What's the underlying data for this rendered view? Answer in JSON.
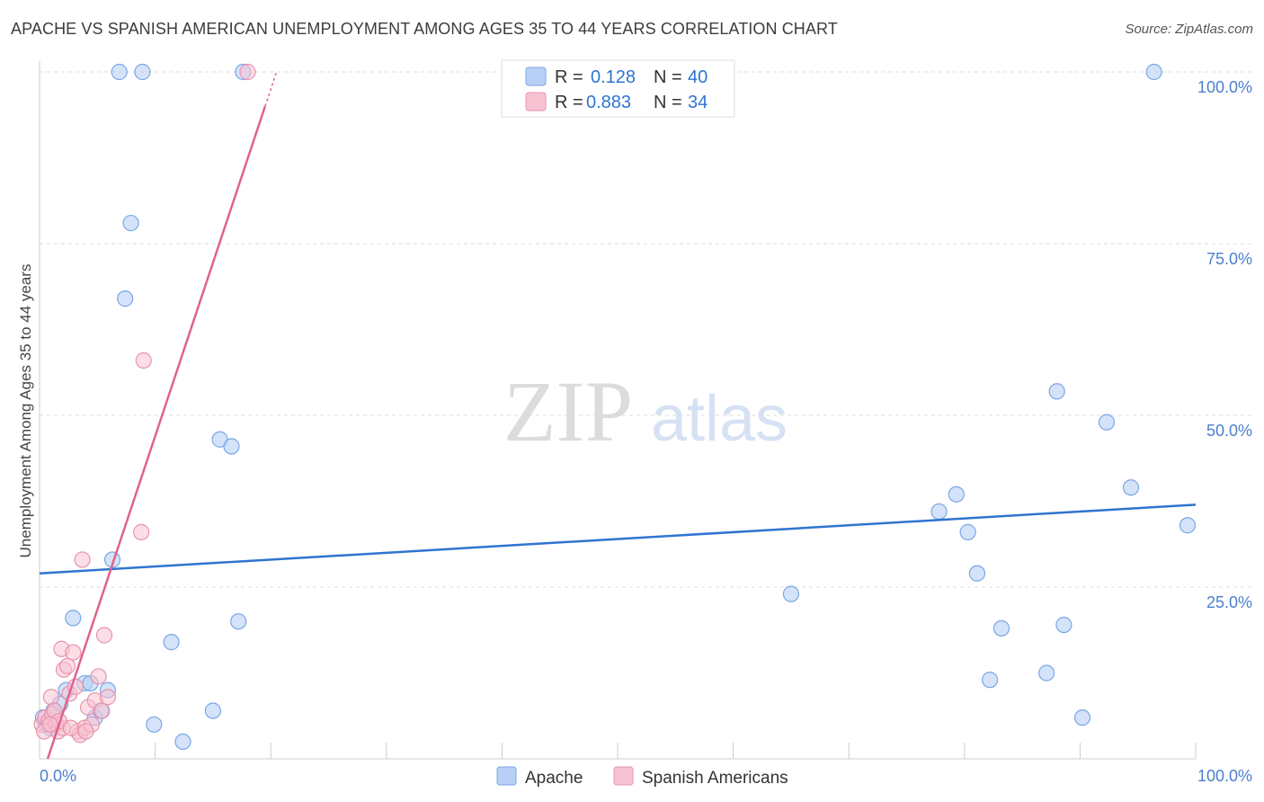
{
  "header": {
    "title": "APACHE VS SPANISH AMERICAN UNEMPLOYMENT AMONG AGES 35 TO 44 YEARS CORRELATION CHART",
    "source": "Source: ZipAtlas.com"
  },
  "watermark": {
    "zip": "ZIP",
    "atlas": "atlas"
  },
  "colors": {
    "apache_fill": "#b8d0f5",
    "apache_stroke": "#7aa6e6",
    "apache_line": "#2f74d0",
    "spanish_fill": "#f7c3d2",
    "spanish_stroke": "#e893ad",
    "spanish_line": "#e0628f",
    "axis_label": "#4a7fd0",
    "grid": "#dddddd"
  },
  "legend_top": {
    "rows": [
      {
        "r_label": "R =",
        "r_value": "0.128",
        "n_label": "N =",
        "n_value": "40"
      },
      {
        "r_label": "R =",
        "r_value": "0.883",
        "n_label": "N =",
        "n_value": "34"
      }
    ]
  },
  "legend_bottom": [
    "Apache",
    "Spanish Americans"
  ],
  "chart_data": {
    "type": "scatter",
    "title": "APACHE VS SPANISH AMERICAN UNEMPLOYMENT AMONG AGES 35 TO 44 YEARS CORRELATION CHART",
    "xlabel": "",
    "ylabel": "Unemployment Among Ages 35 to 44 years",
    "xlim": [
      0,
      100
    ],
    "ylim": [
      0,
      100
    ],
    "x_tick_labels": [
      "0.0%",
      "100.0%"
    ],
    "y_tick_labels": [
      {
        "value": 25,
        "label": "25.0%"
      },
      {
        "value": 50,
        "label": "50.0%"
      },
      {
        "value": 75,
        "label": "75.0%"
      },
      {
        "value": 100,
        "label": "100.0%"
      }
    ],
    "grid": true,
    "series": [
      {
        "name": "Apache",
        "r": 0.128,
        "n": 40,
        "trend": {
          "x0": 0,
          "y0": 27.0,
          "x1": 100,
          "y1": 37.0
        },
        "points": [
          [
            0.3,
            6.0
          ],
          [
            0.6,
            5.0
          ],
          [
            1.2,
            7.0
          ],
          [
            1.8,
            8.0
          ],
          [
            2.3,
            10.0
          ],
          [
            2.9,
            20.5
          ],
          [
            3.9,
            11.0
          ],
          [
            4.4,
            11.0
          ],
          [
            4.8,
            6.0
          ],
          [
            5.3,
            7.0
          ],
          [
            5.9,
            10.0
          ],
          [
            6.3,
            29.0
          ],
          [
            6.9,
            100.0
          ],
          [
            7.4,
            67.0
          ],
          [
            7.9,
            78.0
          ],
          [
            8.9,
            100.0
          ],
          [
            9.9,
            5.0
          ],
          [
            11.4,
            17.0
          ],
          [
            12.4,
            2.5
          ],
          [
            15.0,
            7.0
          ],
          [
            15.6,
            46.5
          ],
          [
            16.6,
            45.5
          ],
          [
            17.2,
            20.0
          ],
          [
            17.6,
            100.0
          ],
          [
            65.0,
            24.0
          ],
          [
            77.8,
            36.0
          ],
          [
            79.3,
            38.5
          ],
          [
            80.3,
            33.0
          ],
          [
            81.1,
            27.0
          ],
          [
            82.2,
            11.5
          ],
          [
            83.2,
            19.0
          ],
          [
            87.1,
            12.5
          ],
          [
            88.0,
            53.5
          ],
          [
            88.6,
            19.5
          ],
          [
            90.2,
            6.0
          ],
          [
            92.3,
            49.0
          ],
          [
            94.4,
            39.5
          ],
          [
            96.4,
            100.0
          ],
          [
            99.3,
            34.0
          ],
          [
            0.9,
            4.5
          ]
        ]
      },
      {
        "name": "Spanish Americans",
        "r": 0.883,
        "n": 34,
        "trend": {
          "x0": 0.7,
          "y0": 0,
          "x1": 20.5,
          "y1": 100
        },
        "points": [
          [
            0.2,
            5.0
          ],
          [
            0.5,
            6.0
          ],
          [
            0.8,
            5.5
          ],
          [
            1.1,
            6.5
          ],
          [
            1.4,
            5.0
          ],
          [
            1.6,
            4.0
          ],
          [
            1.9,
            16.0
          ],
          [
            2.1,
            13.0
          ],
          [
            2.4,
            13.5
          ],
          [
            2.6,
            9.5
          ],
          [
            2.9,
            15.5
          ],
          [
            3.1,
            10.5
          ],
          [
            3.3,
            4.0
          ],
          [
            3.5,
            3.5
          ],
          [
            3.7,
            29.0
          ],
          [
            3.9,
            4.5
          ],
          [
            4.2,
            7.5
          ],
          [
            4.5,
            5.0
          ],
          [
            4.8,
            8.5
          ],
          [
            5.1,
            12.0
          ],
          [
            5.4,
            7.0
          ],
          [
            5.6,
            18.0
          ],
          [
            5.9,
            9.0
          ],
          [
            8.8,
            33.0
          ],
          [
            9.0,
            58.0
          ],
          [
            18.0,
            100.0
          ],
          [
            1.0,
            9.0
          ],
          [
            1.3,
            7.0
          ],
          [
            2.0,
            4.5
          ],
          [
            0.4,
            4.0
          ],
          [
            1.7,
            5.5
          ],
          [
            2.7,
            4.5
          ],
          [
            4.0,
            4.0
          ],
          [
            0.9,
            5.0
          ]
        ]
      }
    ]
  }
}
